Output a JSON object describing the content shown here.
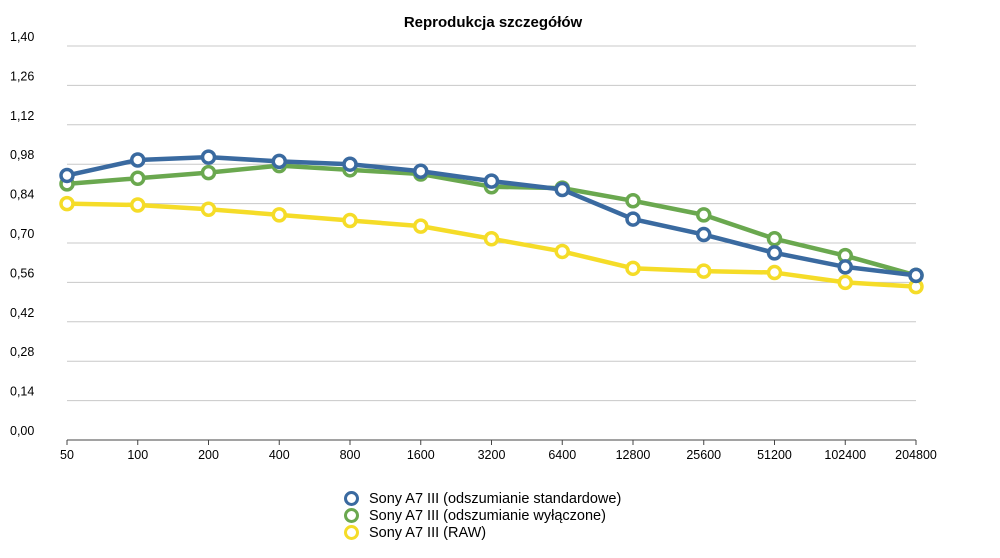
{
  "chart_data": {
    "type": "line",
    "title": "Reprodukcja szczegółów",
    "xlabel": "",
    "ylabel": "",
    "categories": [
      "50",
      "100",
      "200",
      "400",
      "800",
      "1600",
      "3200",
      "6400",
      "12800",
      "25600",
      "51200",
      "102400",
      "204800"
    ],
    "ylim": [
      0,
      1.4
    ],
    "yticks": [
      "0,00",
      "0,14",
      "0,28",
      "0,42",
      "0,56",
      "0,70",
      "0,84",
      "0,98",
      "1,12",
      "1,26",
      "1,40"
    ],
    "grid": true,
    "legend_position": "bottom",
    "series": [
      {
        "name": "Sony A7 III (odszumianie standardowe)",
        "color": "#3a6aa0",
        "values": [
          0.94,
          0.995,
          1.005,
          0.99,
          0.98,
          0.955,
          0.92,
          0.89,
          0.785,
          0.73,
          0.665,
          0.615,
          0.585
        ]
      },
      {
        "name": "Sony A7 III (odszumianie wyłączone)",
        "color": "#6aa84f",
        "values": [
          0.91,
          0.93,
          0.95,
          0.975,
          0.96,
          0.945,
          0.9,
          0.895,
          0.85,
          0.8,
          0.715,
          0.655,
          0.585
        ]
      },
      {
        "name": "Sony A7 III (RAW)",
        "color": "#f5dc28",
        "values": [
          0.84,
          0.835,
          0.82,
          0.8,
          0.78,
          0.76,
          0.715,
          0.67,
          0.61,
          0.6,
          0.595,
          0.56,
          0.545
        ]
      }
    ]
  }
}
